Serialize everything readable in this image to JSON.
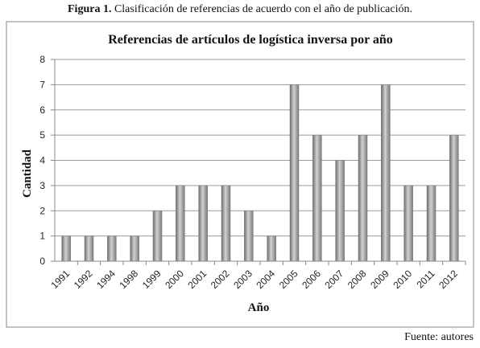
{
  "caption": {
    "label": "Figura 1.",
    "text": "Clasificación de referencias de acuerdo con el año de publicación."
  },
  "source": "Fuente: autores",
  "chart_data": {
    "type": "bar",
    "title": "Referencias de artículos de logística inversa por año",
    "xlabel": "Año",
    "ylabel": "Cantidad",
    "categories": [
      "1991",
      "1992",
      "1994",
      "1998",
      "1999",
      "2000",
      "2001",
      "2002",
      "2003",
      "2004",
      "2005",
      "2006",
      "2007",
      "2008",
      "2009",
      "2010",
      "2011",
      "2012"
    ],
    "values": [
      1,
      1,
      1,
      1,
      2,
      3,
      3,
      3,
      2,
      1,
      7,
      5,
      4,
      5,
      7,
      3,
      3,
      5
    ],
    "ylim": [
      0,
      8
    ],
    "yticks": [
      0,
      1,
      2,
      3,
      4,
      5,
      6,
      7,
      8
    ],
    "grid": true,
    "legend": "none",
    "bar_color": "#a0a0a0"
  }
}
